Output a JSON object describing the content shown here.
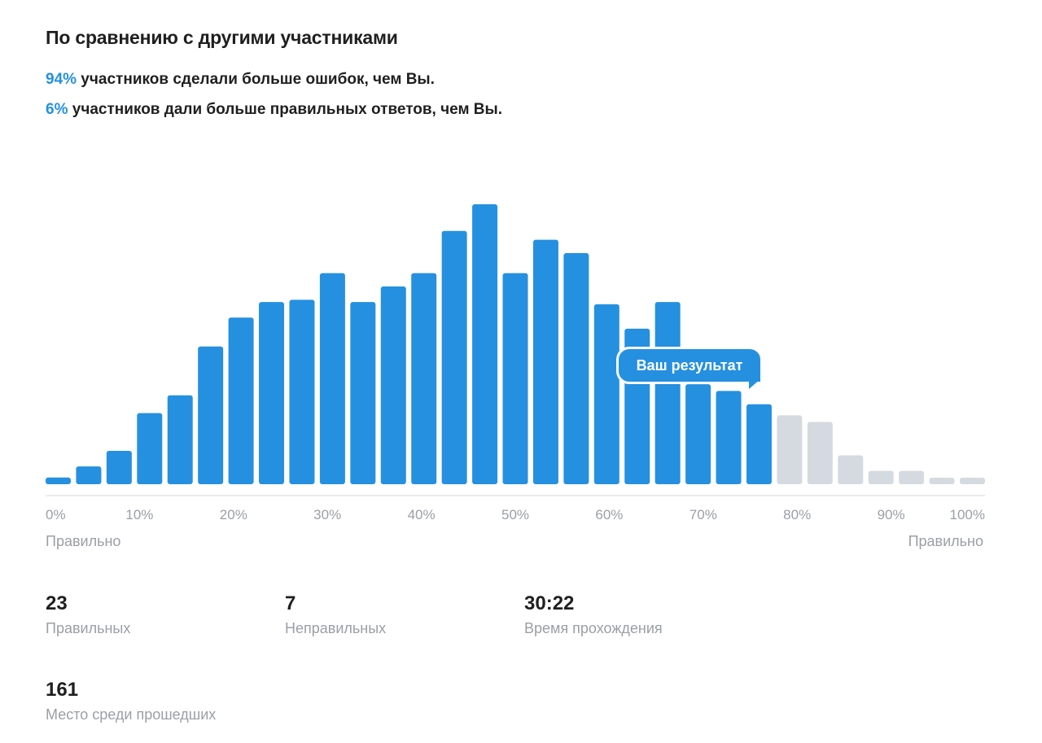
{
  "header": {
    "title": "По сравнению с другими участниками"
  },
  "summary": {
    "line1_pct": "94%",
    "line1_text": " участников сделали больше ошибок, чем Вы.",
    "line2_pct": "6%",
    "line2_text": " участников дали больше правильных ответов, чем Вы."
  },
  "colors": {
    "accent": "#2590e0",
    "bar_active": "#2590e0",
    "bar_inactive": "#d4dae0",
    "muted_text": "#9b9fa4",
    "axis_line": "#e3e6ea"
  },
  "chart_data": {
    "type": "bar",
    "ylabel": "",
    "xlabel": "",
    "x_ticks": [
      "0%",
      "10%",
      "20%",
      "30%",
      "40%",
      "50%",
      "60%",
      "70%",
      "80%",
      "90%",
      "100%"
    ],
    "x_range": [
      0,
      100
    ],
    "bucket_width_pct": 3.33,
    "values": [
      3,
      8,
      15,
      32,
      40,
      62,
      75,
      82,
      83,
      95,
      82,
      89,
      95,
      114,
      126,
      95,
      110,
      104,
      81,
      70,
      82,
      45,
      42,
      36,
      31,
      28,
      13,
      6,
      6,
      2,
      2
    ],
    "active_count": 24,
    "ylim": [
      0,
      126
    ],
    "grid": false
  },
  "axis_end_labels": {
    "left": "Правильно",
    "right": "Правильно"
  },
  "callout": {
    "label": "Ваш результат"
  },
  "metrics": {
    "correct": {
      "value": "23",
      "label": "Правильных"
    },
    "wrong": {
      "value": "7",
      "label": "Неправильных"
    },
    "time": {
      "value": "30:22",
      "label": "Время прохождения"
    },
    "place": {
      "value": "161",
      "label": "Место среди прошедших"
    }
  }
}
